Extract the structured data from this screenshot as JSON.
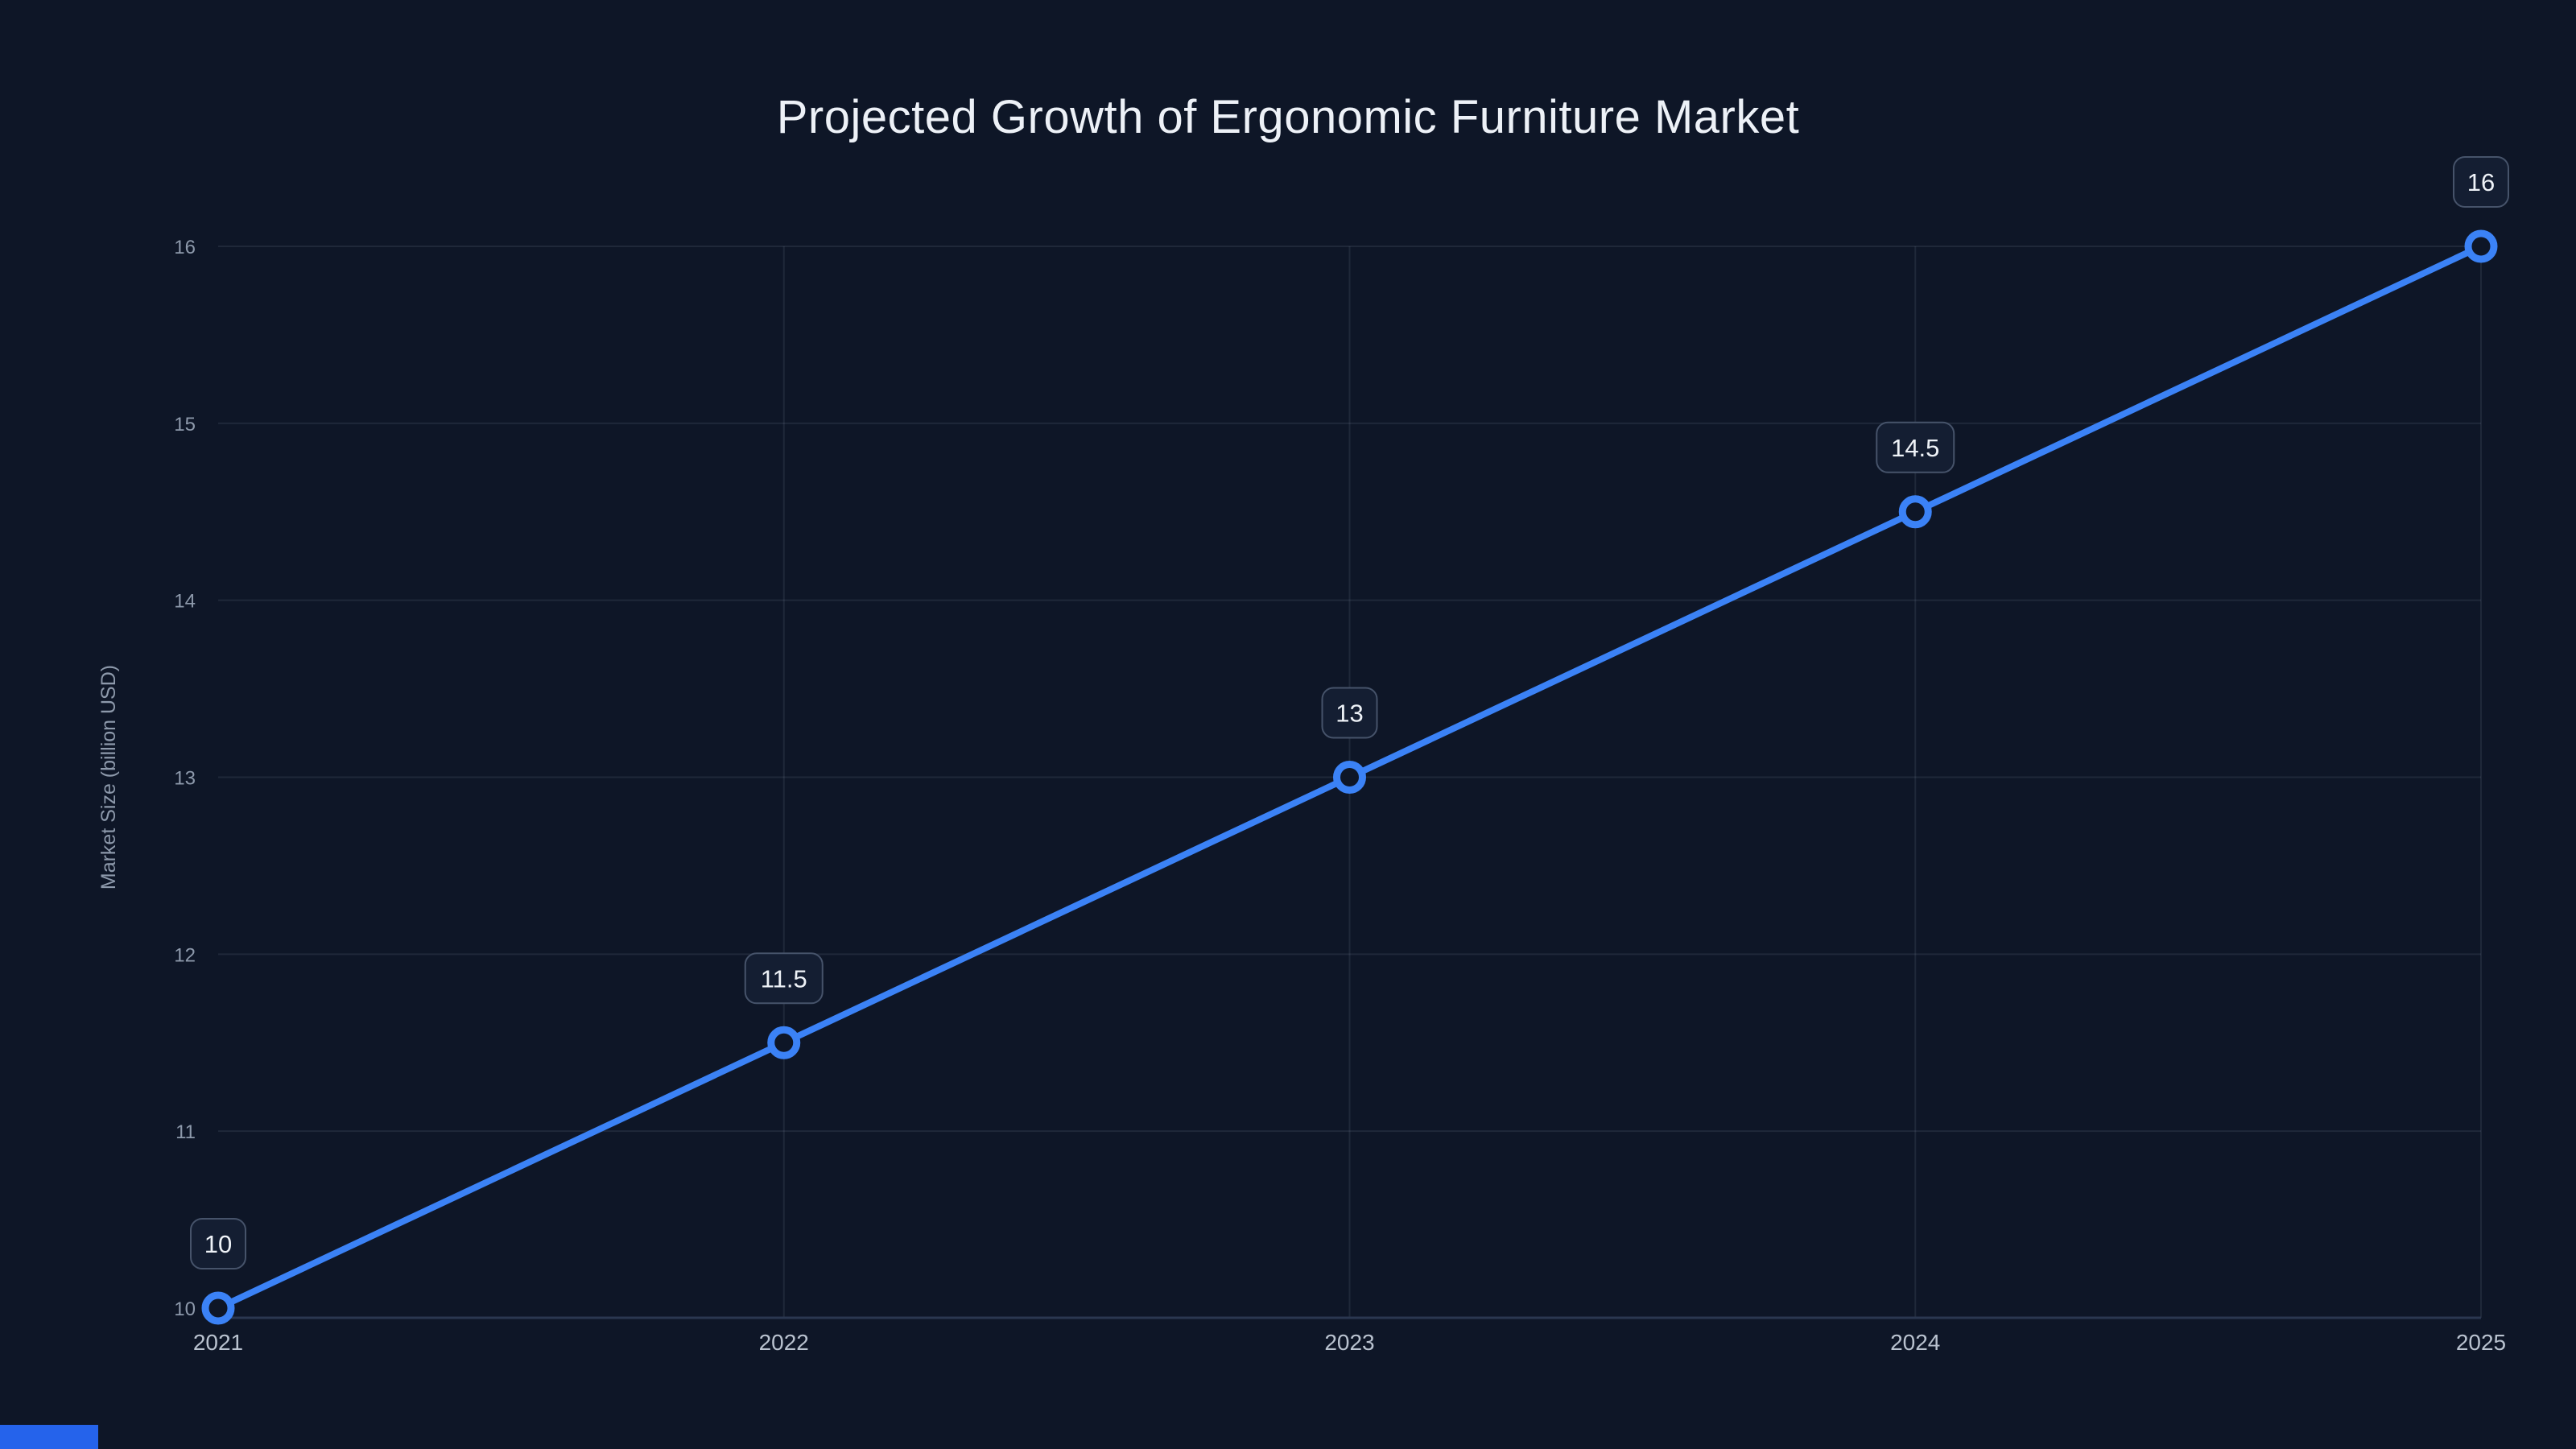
{
  "header": {
    "title": "Projected Growth of Ergonomic Furniture Market"
  },
  "colors": {
    "background": "#0e1627",
    "line": "#3b82f6",
    "marker_fill": "#0e1627",
    "grid": "rgba(148,163,184,0.13)",
    "axis_line": "#2a3750",
    "y_tick_label": "#8d99ab",
    "x_tick_label": "#b9c2cf",
    "axis_title": "#8d99ab",
    "label_box_fill": "#141e32",
    "label_box_border": "#46536a",
    "label_text": "#eef2f7",
    "accent_bar": "#2563eb"
  },
  "chart_data": {
    "type": "line",
    "title": "Projected Growth of Ergonomic Furniture Market",
    "x": [
      "2021",
      "2022",
      "2023",
      "2024",
      "2025"
    ],
    "series": [
      {
        "name": "Market Size",
        "values": [
          10,
          11.5,
          13,
          14.5,
          16
        ]
      }
    ],
    "data_labels": [
      "10",
      "11.5",
      "13",
      "14.5",
      "16"
    ],
    "xlabel": "",
    "ylabel": "Market Size (billion USD)",
    "ylim": [
      10,
      16
    ],
    "yticks": [
      10,
      11,
      12,
      13,
      14,
      15,
      16
    ],
    "grid": true,
    "legend": "none"
  }
}
